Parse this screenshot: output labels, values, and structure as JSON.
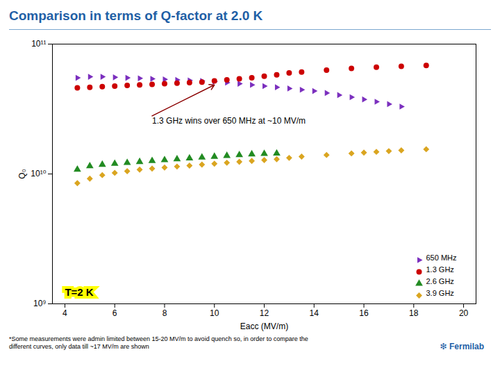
{
  "chart_data": {
    "type": "scatter",
    "title": "Comparison in terms of Q-factor at 2.0 K",
    "xlabel": "Eacc (MV/m)",
    "ylabel": "Q₀",
    "log": "y",
    "grid": false,
    "legend": "lower right",
    "xlim": [
      3.5,
      20.5
    ],
    "xticks": [
      4,
      6,
      8,
      10,
      12,
      14,
      16,
      18,
      20
    ],
    "ylim": [
      1000000000,
      100000000000
    ],
    "yticks": [
      {
        "value": 1000000000,
        "label": "10⁹"
      },
      {
        "value": 10000000000,
        "label": "10¹⁰"
      },
      {
        "value": 100000000000,
        "label": "10¹¹"
      }
    ],
    "series": [
      {
        "name": "650 MHz",
        "color": "#7B2FBE",
        "marker": "triangle-right",
        "x": [
          4.5,
          5.0,
          5.5,
          6.0,
          6.5,
          7.0,
          7.5,
          8.0,
          8.5,
          9.0,
          9.5,
          10.0,
          10.5,
          11.0,
          11.5,
          12.0,
          12.5,
          13.0,
          13.5,
          14.0,
          14.5,
          15.0,
          15.5,
          16.0,
          16.5,
          17.0,
          17.5
        ],
        "values": [
          55000000000.0,
          56000000000.0,
          56000000000.0,
          55500000000.0,
          55000000000.0,
          54500000000.0,
          54000000000.0,
          53500000000.0,
          53000000000.0,
          52500000000.0,
          52000000000.0,
          51500000000.0,
          50500000000.0,
          49500000000.0,
          48500000000.0,
          47500000000.0,
          46500000000.0,
          45500000000.0,
          44500000000.0,
          43500000000.0,
          42000000000.0,
          40500000000.0,
          39000000000.0,
          37500000000.0,
          36000000000.0,
          34500000000.0,
          33000000000.0
        ]
      },
      {
        "name": "1.3 GHz",
        "color": "#CC0000",
        "marker": "circle",
        "x": [
          4.5,
          5.0,
          5.5,
          6.0,
          6.5,
          7.0,
          7.5,
          8.0,
          8.5,
          9.0,
          9.5,
          10.0,
          10.5,
          11.0,
          11.5,
          12.0,
          12.5,
          13.0,
          13.5,
          14.5,
          15.5,
          16.5,
          17.5,
          18.5
        ],
        "values": [
          46000000000.0,
          46500000000.0,
          47000000000.0,
          47500000000.0,
          48000000000.0,
          48500000000.0,
          49000000000.0,
          49500000000.0,
          50000000000.0,
          50500000000.0,
          51000000000.0,
          52000000000.0,
          53000000000.0,
          54000000000.0,
          55000000000.0,
          56500000000.0,
          58000000000.0,
          60000000000.0,
          61000000000.0,
          63000000000.0,
          65000000000.0,
          66500000000.0,
          67500000000.0,
          68500000000.0
        ]
      },
      {
        "name": "2.6 GHz",
        "color": "#228B22",
        "marker": "triangle",
        "x": [
          4.5,
          5.0,
          5.5,
          6.0,
          6.5,
          7.0,
          7.5,
          8.0,
          8.5,
          9.0,
          9.5,
          10.0,
          10.5,
          11.0,
          11.5,
          12.0,
          12.5
        ],
        "values": [
          10800000000.0,
          11500000000.0,
          11800000000.0,
          12000000000.0,
          12200000000.0,
          12400000000.0,
          12600000000.0,
          12800000000.0,
          13000000000.0,
          13200000000.0,
          13400000000.0,
          13600000000.0,
          13800000000.0,
          14000000000.0,
          14200000000.0,
          14300000000.0,
          14400000000.0
        ]
      },
      {
        "name": "3.9 GHz",
        "color": "#DAA520",
        "marker": "diamond",
        "x": [
          4.5,
          5.0,
          5.5,
          6.0,
          6.5,
          7.0,
          7.5,
          8.0,
          8.5,
          9.0,
          9.5,
          10.0,
          10.5,
          11.0,
          11.5,
          12.0,
          12.5,
          13.0,
          13.5,
          14.5,
          15.5,
          16.0,
          16.5,
          17.0,
          17.5,
          18.5
        ],
        "values": [
          8500000000.0,
          9200000000.0,
          9800000000.0,
          10200000000.0,
          10500000000.0,
          10800000000.0,
          11000000000.0,
          11200000000.0,
          11400000000.0,
          11600000000.0,
          11800000000.0,
          12000000000.0,
          12200000000.0,
          12400000000.0,
          12600000000.0,
          12800000000.0,
          13000000000.0,
          13300000000.0,
          13600000000.0,
          14000000000.0,
          14400000000.0,
          14600000000.0,
          14800000000.0,
          15000000000.0,
          15200000000.0,
          15500000000.0
        ]
      }
    ],
    "annotations": [
      {
        "text": "1.3 GHz wins over 650 MHz at ~10 MV/m",
        "x": 10.0,
        "y": 48500000000.0,
        "text_x": 7.5,
        "text_y": 28000000000.0
      },
      {
        "text": "T=2 K",
        "x": 4.0,
        "y": 1150000000.0
      }
    ],
    "caption": "*Some measurements were admin limited between 15-20 MV/m to avoid quench so, in order to compare the\ndifferent curves, only data till ~17 MV/m are shown",
    "credit": "❇ Fermilab"
  }
}
